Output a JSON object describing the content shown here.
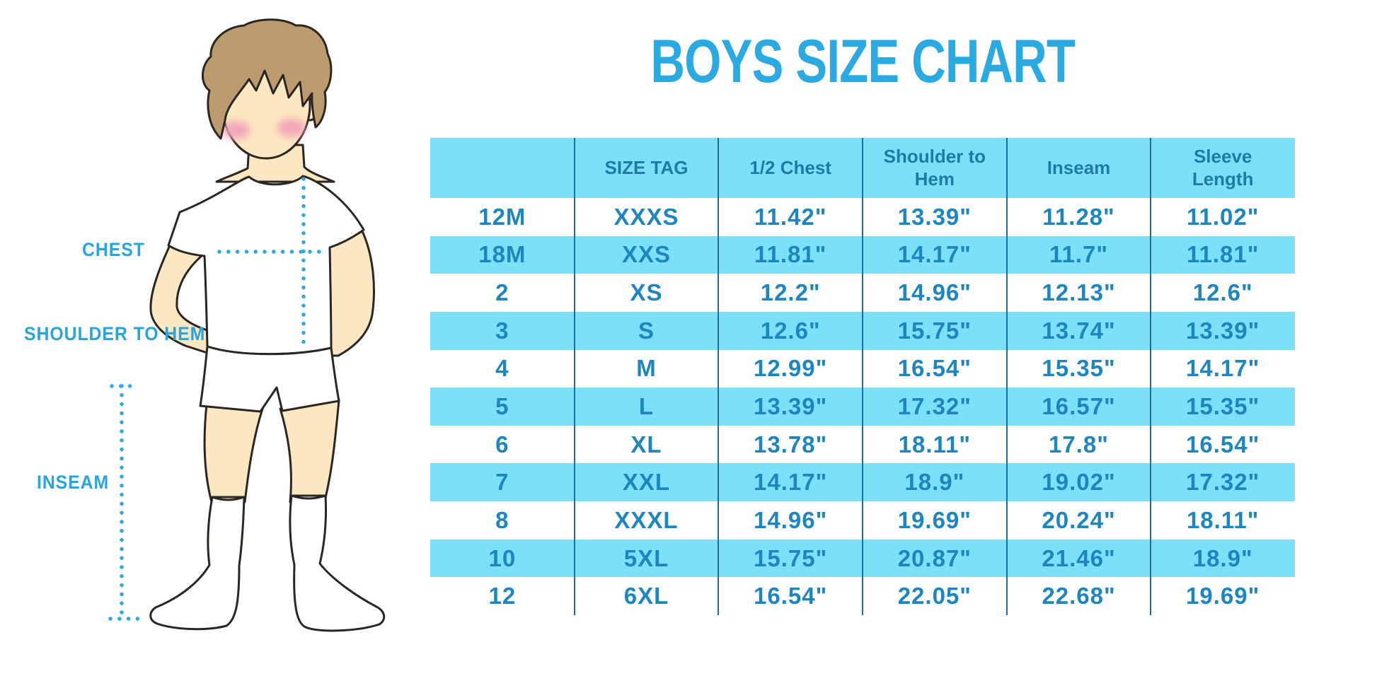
{
  "title": "BOYS SIZE CHART",
  "diagram": {
    "chest_label": "CHEST",
    "shoulder_label": "SHOULDER TO HEM",
    "inseam_label": "INSEAM"
  },
  "colors": {
    "accent_blue": "#2BA9E1",
    "table_row_cyan": "#7CE0F8",
    "table_divider": "#1B6E9E",
    "table_header_text": "#1F7BA6",
    "table_body_text": "#1E86BE",
    "skin": "#FBE7C1",
    "hair": "#BC9B6F",
    "cheek_pink": "#F2A2B8"
  },
  "chart_data": {
    "type": "table",
    "title": "BOYS SIZE CHART",
    "columns": [
      "",
      "SIZE TAG",
      "1/2 Chest",
      "Shoulder to Hem",
      "Inseam",
      "Sleeve Length"
    ],
    "rows": [
      [
        "12M",
        "XXXS",
        "11.42\"",
        "13.39\"",
        "11.28\"",
        "11.02\""
      ],
      [
        "18M",
        "XXS",
        "11.81\"",
        "14.17\"",
        "11.7\"",
        "11.81\""
      ],
      [
        "2",
        "XS",
        "12.2\"",
        "14.96\"",
        "12.13\"",
        "12.6\""
      ],
      [
        "3",
        "S",
        "12.6\"",
        "15.75\"",
        "13.74\"",
        "13.39\""
      ],
      [
        "4",
        "M",
        "12.99\"",
        "16.54\"",
        "15.35\"",
        "14.17\""
      ],
      [
        "5",
        "L",
        "13.39\"",
        "17.32\"",
        "16.57\"",
        "15.35\""
      ],
      [
        "6",
        "XL",
        "13.78\"",
        "18.11\"",
        "17.8\"",
        "16.54\""
      ],
      [
        "7",
        "XXL",
        "14.17\"",
        "18.9\"",
        "19.02\"",
        "17.32\""
      ],
      [
        "8",
        "XXXL",
        "14.96\"",
        "19.69\"",
        "20.24\"",
        "18.11\""
      ],
      [
        "10",
        "5XL",
        "15.75\"",
        "20.87\"",
        "21.46\"",
        "18.9\""
      ],
      [
        "12",
        "6XL",
        "16.54\"",
        "22.05\"",
        "22.68\"",
        "19.69\""
      ]
    ],
    "zebra_highlight_rows": [
      1,
      3,
      5,
      7,
      9
    ],
    "legend_position": "none",
    "grid": "vertical-dividers-only"
  }
}
